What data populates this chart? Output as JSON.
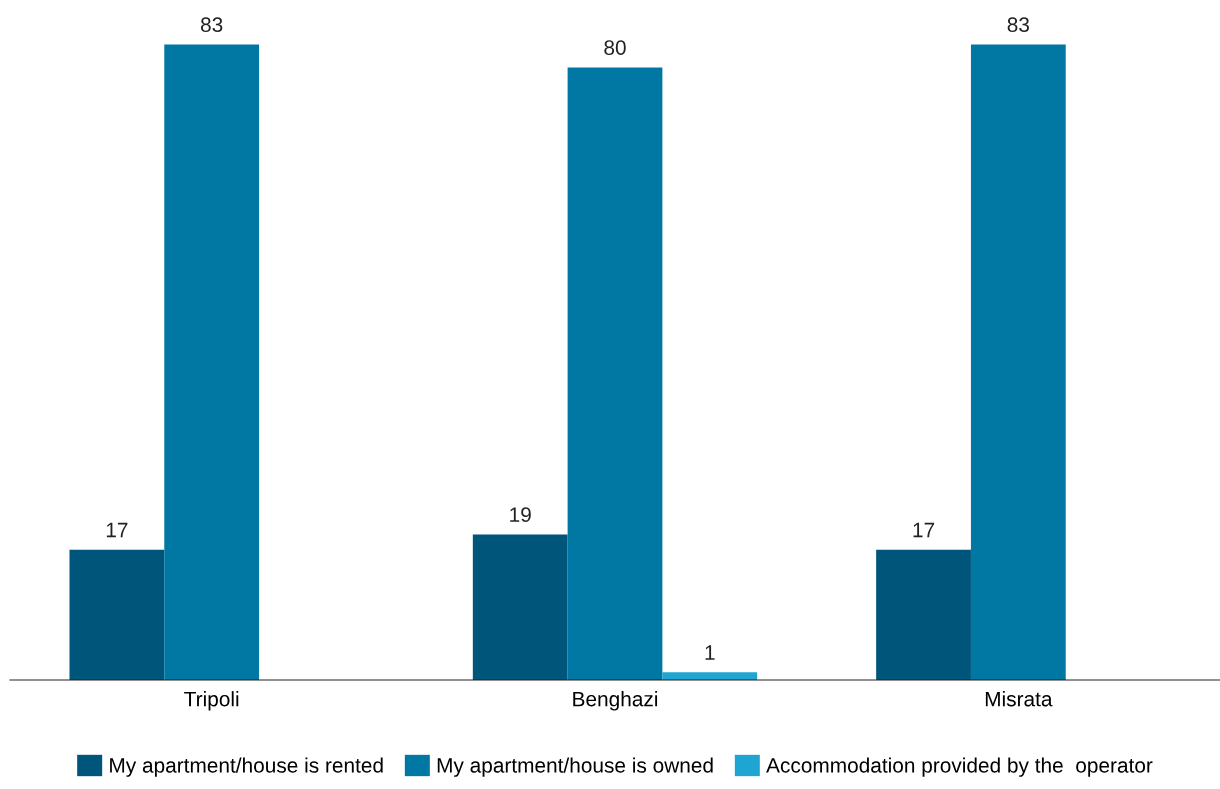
{
  "chart_data": {
    "type": "bar",
    "categories": [
      "Tripoli",
      "Benghazi",
      "Misrata"
    ],
    "series": [
      {
        "name": "My apartment/house is rented",
        "color": "#00557a",
        "values": [
          17,
          19,
          17
        ]
      },
      {
        "name": "My apartment/house is owned",
        "color": "#0078a3",
        "values": [
          83,
          80,
          83
        ]
      },
      {
        "name": "Accommodation provided by the  operator",
        "color": "#1ea5d2",
        "values": [
          null,
          1,
          null
        ]
      }
    ],
    "tick_labels": "x",
    "data_labels": true,
    "grid": false,
    "legend": "bottom"
  }
}
